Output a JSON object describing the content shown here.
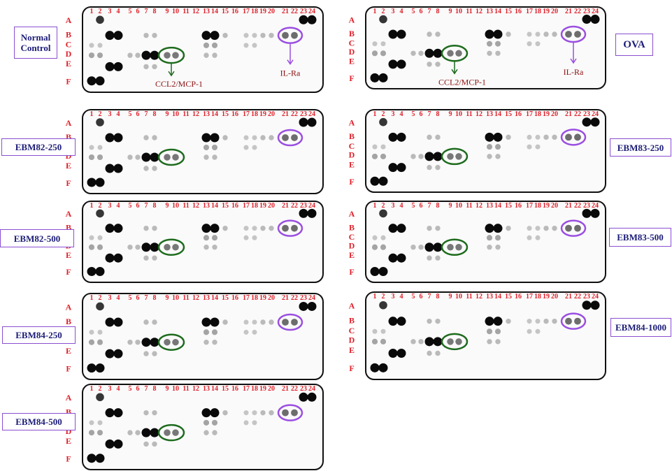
{
  "column_labels": [
    "1",
    "2",
    "3",
    "4",
    "5",
    "6",
    "7",
    "8",
    "9",
    "10",
    "11",
    "12",
    "13",
    "14",
    "15",
    "16",
    "17",
    "18",
    "19",
    "20",
    "21",
    "22",
    "23",
    "24"
  ],
  "row_labels": [
    "A",
    "B",
    "C",
    "D",
    "E",
    "F"
  ],
  "annotations": {
    "ccl2": "CCL2/MCP-1",
    "il_ra": "IL-Ra"
  },
  "panels": [
    {
      "label": "Normal Control",
      "annotated": true
    },
    {
      "label": "OVA",
      "annotated": true
    },
    {
      "label": "EBM82-250",
      "annotated": false
    },
    {
      "label": "EBM83-250",
      "annotated": false
    },
    {
      "label": "EBM82-500",
      "annotated": false
    },
    {
      "label": "EBM83-500",
      "annotated": false
    },
    {
      "label": "EBM84-250",
      "annotated": false
    },
    {
      "label": "EBM84-1000",
      "annotated": false
    },
    {
      "label": "EBM84-500",
      "annotated": false
    }
  ]
}
